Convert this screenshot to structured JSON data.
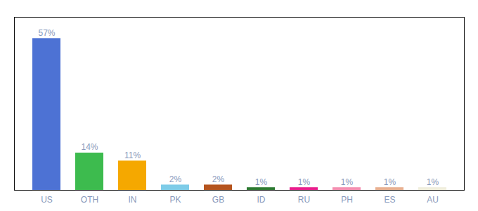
{
  "chart_data": {
    "type": "bar",
    "categories": [
      "US",
      "OTH",
      "IN",
      "PK",
      "GB",
      "ID",
      "RU",
      "PH",
      "ES",
      "AU"
    ],
    "values": [
      57,
      14,
      11,
      2,
      2,
      1,
      1,
      1,
      1,
      1
    ],
    "value_labels": [
      "57%",
      "14%",
      "11%",
      "2%",
      "2%",
      "1%",
      "1%",
      "1%",
      "1%",
      "1%"
    ],
    "colors": [
      "#4d72d4",
      "#3dbb4e",
      "#f5a800",
      "#7ecce8",
      "#b5541e",
      "#2d7a32",
      "#e91e8c",
      "#f48fb1",
      "#e8b090",
      "#f0eedc"
    ],
    "ylim": [
      0,
      65
    ],
    "data_labels": true,
    "tick_labels": "x",
    "grid": false
  }
}
